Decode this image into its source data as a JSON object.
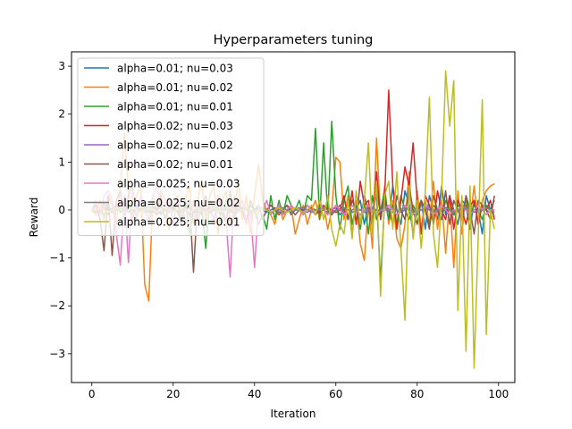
{
  "chart_data": {
    "type": "line",
    "title": "Hyperparameters tuning",
    "xlabel": "Iteration",
    "ylabel": "Reward",
    "xlim": [
      -5,
      104
    ],
    "ylim": [
      -3.6,
      3.3
    ],
    "xticks": [
      0,
      20,
      40,
      60,
      80,
      100
    ],
    "yticks": [
      -3,
      -2,
      -1,
      0,
      1,
      2,
      3
    ],
    "xtick_labels": [
      "0",
      "20",
      "40",
      "60",
      "80",
      "100"
    ],
    "ytick_labels": [
      "−3",
      "−2",
      "−1",
      "0",
      "1",
      "2",
      "3"
    ],
    "grid": false,
    "legend_position": "upper-left",
    "series": [
      {
        "name": "alpha=0.01; nu=0.03",
        "color": "#1f77b4",
        "values": [
          0.0,
          0.1,
          -0.05,
          0.15,
          -0.1,
          0.05,
          0.1,
          -0.05,
          0.05,
          0.0,
          -0.1,
          0.1,
          0.0,
          0.05,
          -0.05,
          0.1,
          0.0,
          -0.1,
          0.05,
          0.0,
          0.1,
          -0.05,
          0.0,
          0.05,
          -0.1,
          0.1,
          0.0,
          0.05,
          0.0,
          -0.05,
          0.1,
          0.0,
          -0.1,
          0.05,
          0.0,
          0.1,
          -0.05,
          0.0,
          0.05,
          -0.1,
          0.0,
          0.05,
          0.0,
          -0.05,
          0.0,
          0.05,
          -0.05,
          0.0,
          0.1,
          -0.1,
          0.0,
          0.05,
          -0.05,
          0.0,
          0.05,
          -0.1,
          0.1,
          0.0,
          -0.05,
          0.0,
          0.05,
          -0.1,
          0.0,
          0.1,
          -0.05,
          0.0,
          0.2,
          -0.3,
          0.1,
          0.0,
          0.3,
          -1.5,
          0.2,
          -0.2,
          0.5,
          0.0,
          -0.3,
          0.4,
          0.1,
          -0.5,
          0.0,
          0.2,
          -0.4,
          0.3,
          0.0,
          -0.2,
          0.5,
          -0.1,
          0.3,
          0.0,
          -0.3,
          0.2,
          0.1,
          -0.4,
          0.2,
          0.0,
          -0.5,
          0.3,
          0.0,
          0.2
        ]
      },
      {
        "name": "alpha=0.01; nu=0.02",
        "color": "#ff7f0e",
        "values": [
          0.0,
          -0.1,
          0.2,
          -0.2,
          0.3,
          0.1,
          -0.3,
          0.5,
          1.6,
          0.4,
          -0.2,
          0.3,
          0.5,
          -1.55,
          -1.9,
          0.3,
          0.1,
          0.4,
          0.2,
          -0.4,
          0.1,
          0.3,
          -0.2,
          0.2,
          0.5,
          -0.3,
          0.2,
          0.6,
          -0.2,
          0.3,
          0.5,
          -0.5,
          0.2,
          0.4,
          -0.3,
          0.0,
          0.6,
          -0.2,
          0.3,
          -0.5,
          0.3,
          0.95,
          0.2,
          0.0,
          -0.1,
          -0.3,
          0.1,
          -0.2,
          0.0,
          0.1,
          -0.5,
          -0.2,
          0.1,
          -0.3,
          0.0,
          0.2,
          -0.2,
          0.1,
          -0.4,
          0.0,
          1.1,
          1.0,
          -0.2,
          0.3,
          -0.5,
          0.2,
          -0.7,
          -1.05,
          0.1,
          -0.8,
          1.5,
          -0.2,
          0.5,
          -0.3,
          0.2,
          -0.6,
          -0.8,
          -0.3,
          0.8,
          -0.6,
          0.4,
          -0.4,
          0.2,
          -0.3,
          0.6,
          -0.4,
          0.2,
          -0.9,
          0.3,
          -1.2,
          0.4,
          -0.5,
          0.3,
          -0.2,
          0.5,
          -0.3,
          0.2,
          0.4,
          0.5,
          0.55
        ]
      },
      {
        "name": "alpha=0.01; nu=0.01",
        "color": "#2ca02c",
        "values": [
          0.0,
          0.1,
          0.0,
          -0.1,
          0.05,
          0.0,
          0.1,
          -0.05,
          0.0,
          0.1,
          0.0,
          -0.1,
          0.05,
          0.0,
          0.1,
          -0.05,
          0.0,
          0.1,
          0.0,
          -0.05,
          0.1,
          0.0,
          -0.3,
          0.2,
          -0.5,
          0.0,
          -0.2,
          0.1,
          -0.8,
          0.2,
          0.0,
          0.1,
          -0.3,
          0.2,
          0.0,
          -0.1,
          0.2,
          0.0,
          -0.2,
          0.1,
          0.0,
          -0.3,
          -0.1,
          -0.4,
          0.3,
          -0.2,
          0.2,
          -0.1,
          0.3,
          0.1,
          0.0,
          0.2,
          -0.1,
          0.3,
          0.2,
          1.7,
          -0.2,
          1.4,
          -0.1,
          1.85,
          0.3,
          -0.4,
          0.2,
          0.5,
          -0.3,
          0.1,
          -0.4,
          0.2,
          -0.5,
          0.3,
          -0.2,
          0.0,
          0.4,
          -0.2,
          0.1,
          -0.3,
          0.3,
          0.0,
          -0.2,
          0.1,
          -0.1,
          0.2,
          0.0,
          -0.3,
          0.1,
          0.0,
          -0.2,
          0.2,
          0.0,
          -0.1,
          0.1,
          0.0,
          0.2,
          -0.1,
          0.1,
          0.0,
          -0.2,
          0.1,
          0.0,
          0.0
        ]
      },
      {
        "name": "alpha=0.02; nu=0.03",
        "color": "#d62728",
        "values": [
          0.0,
          -0.05,
          0.0,
          0.05,
          0.0,
          -0.05,
          0.1,
          0.0,
          -0.05,
          0.0,
          0.05,
          0.0,
          -0.05,
          0.0,
          0.05,
          0.0,
          -0.1,
          0.0,
          0.05,
          0.0,
          -0.05,
          0.0,
          0.05,
          0.0,
          -0.05,
          0.0,
          0.05,
          0.0,
          -0.05,
          0.0,
          0.05,
          0.0,
          -0.05,
          0.0,
          0.05,
          0.0,
          -0.05,
          0.0,
          0.05,
          0.0,
          -0.05,
          0.0,
          0.05,
          0.0,
          -0.05,
          0.0,
          0.05,
          0.0,
          -0.05,
          0.0,
          0.05,
          0.0,
          -0.05,
          0.0,
          0.05,
          0.0,
          -0.05,
          0.0,
          0.05,
          0.0,
          -0.05,
          0.0,
          0.3,
          -0.2,
          0.4,
          -0.3,
          0.6,
          0.1,
          0.2,
          -0.4,
          0.8,
          -0.2,
          0.3,
          2.5,
          0.5,
          -0.4,
          0.2,
          0.9,
          0.5,
          1.4,
          0.2,
          -0.5,
          0.3,
          0.1,
          -0.3,
          0.4,
          0.0,
          -0.2,
          0.3,
          -0.4,
          0.2,
          0.0,
          -0.3,
          0.1,
          0.2,
          -0.3,
          0.1,
          0.0,
          0.2,
          -0.2
        ]
      },
      {
        "name": "alpha=0.02; nu=0.02",
        "color": "#9467bd",
        "values": [
          0.0,
          0.0,
          0.05,
          0.0,
          -0.05,
          0.0,
          0.05,
          0.0,
          -0.05,
          0.0,
          0.0,
          0.05,
          0.0,
          -0.05,
          0.0,
          0.05,
          0.0,
          -0.05,
          0.0,
          0.0,
          0.05,
          0.0,
          -0.05,
          0.0,
          0.05,
          0.0,
          -0.05,
          0.0,
          0.0,
          0.05,
          0.0,
          -0.05,
          0.0,
          0.05,
          0.0,
          -0.05,
          0.0,
          0.0,
          0.05,
          0.0,
          -0.05,
          0.0,
          0.05,
          0.0,
          -0.05,
          0.0,
          0.0,
          0.05,
          0.0,
          -0.05,
          0.0,
          0.05,
          0.0,
          -0.05,
          0.0,
          0.0,
          0.05,
          0.0,
          -0.05,
          0.0,
          0.05,
          0.0,
          -0.05,
          0.0,
          0.0,
          0.05,
          0.0,
          -0.05,
          0.0,
          0.05,
          0.0,
          -0.05,
          0.0,
          0.0,
          0.05,
          0.0,
          -0.05,
          0.0,
          0.05,
          0.0,
          -0.05,
          0.0,
          0.0,
          0.05,
          0.0,
          -0.05,
          0.0,
          0.05,
          0.0,
          -0.05,
          0.0,
          0.0,
          0.05,
          0.0,
          -0.05,
          0.0,
          0.05,
          0.0,
          -0.05,
          0.0
        ]
      },
      {
        "name": "alpha=0.02; nu=0.01",
        "color": "#8c564b",
        "values": [
          0.0,
          0.1,
          -0.2,
          -0.85,
          0.3,
          -0.95,
          0.2,
          0.4,
          -0.1,
          0.3,
          0.5,
          -0.2,
          0.3,
          0.1,
          -0.3,
          0.2,
          0.0,
          0.3,
          -0.2,
          0.1,
          0.0,
          0.2,
          -0.3,
          0.1,
          0.2,
          -1.3,
          0.2,
          -0.1,
          0.3,
          0.0,
          -0.2,
          0.2,
          0.1,
          -0.3,
          0.4,
          -0.2,
          0.1,
          0.0,
          -0.3,
          0.2,
          0.0,
          0.1,
          -0.2,
          0.0,
          0.1,
          0.0,
          -0.1,
          0.0,
          0.1,
          0.0,
          -0.1,
          0.0,
          0.0,
          0.1,
          0.0,
          -0.1,
          0.0,
          0.1,
          0.0,
          -0.1,
          0.0,
          0.1,
          0.0,
          -0.2,
          0.2,
          0.0,
          -0.3,
          0.3,
          0.0,
          -0.2,
          0.4,
          -0.1,
          0.2,
          0.0,
          -0.3,
          0.3,
          0.0,
          -0.2,
          0.5,
          0.0,
          -0.3,
          0.2,
          0.0,
          -0.4,
          0.3,
          0.0,
          -0.2,
          0.4,
          -0.3,
          0.2,
          0.0,
          -0.2,
          0.3,
          0.0,
          -0.5,
          0.2,
          0.1,
          0.0,
          -0.2,
          0.3
        ]
      },
      {
        "name": "alpha=0.025; nu=0.03",
        "color": "#e377c2",
        "values": [
          0.0,
          0.2,
          -0.1,
          0.3,
          0.4,
          0.2,
          -0.5,
          -1.15,
          0.3,
          -1.1,
          0.4,
          -0.2,
          0.3,
          0.0,
          -0.2,
          0.3,
          0.5,
          0.1,
          0.0,
          0.2,
          -0.3,
          0.2,
          0.1,
          -0.2,
          -0.4,
          0.2,
          -0.3,
          0.1,
          0.0,
          0.2,
          -0.3,
          0.3,
          0.1,
          -0.2,
          -1.4,
          0.3,
          0.0,
          0.2,
          -0.3,
          0.0,
          -1.2,
          0.1,
          0.0,
          0.2,
          -0.1,
          0.0,
          0.1,
          -0.1,
          0.0,
          0.1,
          0.0,
          0.0,
          -0.1,
          0.1,
          0.0,
          -0.1,
          0.2,
          0.0,
          -0.1,
          0.0,
          0.1,
          0.0,
          -0.1,
          0.0,
          0.1,
          0.0,
          -0.1,
          0.0,
          0.1,
          0.0,
          -0.1,
          0.0,
          0.0,
          0.1,
          0.0,
          -0.1,
          0.0,
          0.1,
          0.0,
          -0.1,
          0.0,
          0.0,
          0.1,
          0.0,
          -0.1,
          0.0,
          0.1,
          0.0,
          -0.1,
          0.0,
          0.0,
          0.1,
          0.0,
          -0.1,
          0.0,
          0.1,
          0.0,
          -0.1,
          0.0,
          0.0
        ]
      },
      {
        "name": "alpha=0.025; nu=0.02",
        "color": "#7f7f7f",
        "values": [
          0.0,
          0.0,
          0.05,
          0.0,
          -0.05,
          0.0,
          0.0,
          0.05,
          0.0,
          -0.05,
          0.0,
          0.0,
          0.05,
          0.0,
          -0.05,
          0.0,
          0.0,
          0.05,
          0.0,
          -0.05,
          0.0,
          0.0,
          0.05,
          0.0,
          -0.05,
          0.0,
          0.0,
          0.05,
          0.0,
          -0.05,
          0.0,
          0.0,
          0.05,
          0.0,
          -0.05,
          0.0,
          0.0,
          0.05,
          0.0,
          -0.05,
          0.0,
          0.0,
          0.05,
          0.0,
          -0.05,
          0.0,
          0.0,
          0.05,
          0.0,
          -0.05,
          0.0,
          0.0,
          0.05,
          0.0,
          -0.05,
          0.0,
          0.0,
          0.05,
          0.0,
          -0.05,
          0.0,
          0.0,
          0.05,
          0.0,
          -0.05,
          0.0,
          0.0,
          0.05,
          0.0,
          -0.05,
          0.0,
          0.0,
          0.05,
          0.0,
          -0.05,
          0.0,
          0.0,
          0.05,
          0.0,
          -0.05,
          0.0,
          0.0,
          0.05,
          0.0,
          -0.05,
          0.0,
          0.0,
          0.05,
          0.0,
          -0.05,
          0.0,
          0.0,
          0.05,
          0.0,
          -0.05,
          0.0,
          0.0,
          0.05,
          0.0,
          -0.05
        ]
      },
      {
        "name": "alpha=0.025; nu=0.01",
        "color": "#bcbd22",
        "values": [
          0.0,
          0.0,
          0.05,
          0.0,
          -0.05,
          0.0,
          0.05,
          0.0,
          -0.05,
          0.0,
          0.05,
          0.0,
          -0.05,
          0.0,
          0.05,
          0.0,
          -0.05,
          0.0,
          0.05,
          0.0,
          -0.05,
          0.0,
          0.05,
          0.0,
          -0.05,
          0.0,
          0.05,
          0.0,
          -0.05,
          0.0,
          0.05,
          0.0,
          -0.05,
          0.0,
          0.05,
          0.0,
          -0.05,
          0.0,
          0.05,
          0.0,
          -0.05,
          0.0,
          0.05,
          0.0,
          -0.05,
          0.0,
          0.05,
          0.0,
          -0.05,
          0.0,
          0.05,
          0.0,
          -0.05,
          0.0,
          0.1,
          -0.1,
          0.2,
          -0.2,
          0.3,
          -0.4,
          -0.75,
          -0.3,
          -0.5,
          0.2,
          -0.6,
          0.4,
          -0.3,
          0.2,
          1.4,
          -0.5,
          0.6,
          -1.8,
          0.3,
          0.6,
          -0.4,
          0.8,
          -0.8,
          -2.3,
          0.5,
          -0.6,
          0.2,
          -0.8,
          0.4,
          2.35,
          -0.5,
          -1.2,
          0.3,
          2.9,
          1.75,
          2.7,
          -2.1,
          0.3,
          -2.95,
          0.5,
          -3.3,
          -0.6,
          2.3,
          -2.6,
          0.0,
          -0.4
        ]
      }
    ]
  }
}
